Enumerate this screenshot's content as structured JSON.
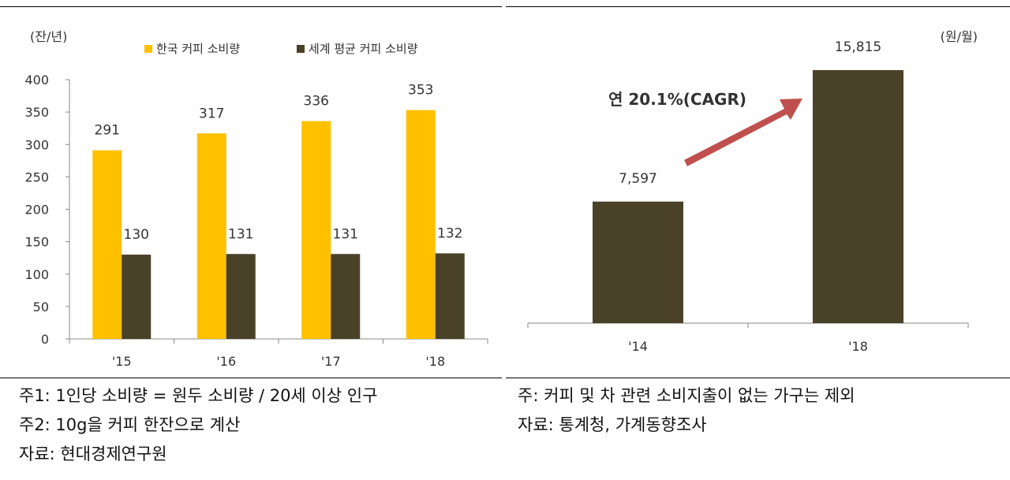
{
  "colors": {
    "korea": "#FFC000",
    "world": "#4A4129",
    "arrow": "#C0504D",
    "axis": "#888888"
  },
  "chart_data": [
    {
      "type": "bar",
      "unit": "(잔/년)",
      "categories": [
        "'15",
        "'16",
        "'17",
        "'18"
      ],
      "series": [
        {
          "name": "한국 커피 소비량",
          "values": [
            291,
            317,
            336,
            353
          ]
        },
        {
          "name": "세계 평균 커피 소비량",
          "values": [
            130,
            131,
            131,
            132
          ]
        }
      ],
      "ylim": [
        0,
        400
      ],
      "yticks": [
        0,
        50,
        100,
        150,
        200,
        250,
        300,
        350,
        400
      ],
      "legend": "top"
    },
    {
      "type": "bar",
      "unit": "(원/월)",
      "categories": [
        "'14",
        "'18"
      ],
      "values": [
        7597,
        15815
      ],
      "value_labels": [
        "7,597",
        "15,815"
      ],
      "annotation": "연 20.1%(CAGR)",
      "ylim": [
        0,
        16500
      ]
    }
  ],
  "notes_left": [
    "주1: 1인당 소비량 = 원두 소비량 / 20세 이상 인구",
    "주2: 10g을 커피 한잔으로 계산",
    "자료: 현대경제연구원"
  ],
  "notes_right": [
    "주: 커피 및 차 관련 소비지출이 없는 가구는 제외",
    "자료: 통계청, 가계동향조사"
  ]
}
